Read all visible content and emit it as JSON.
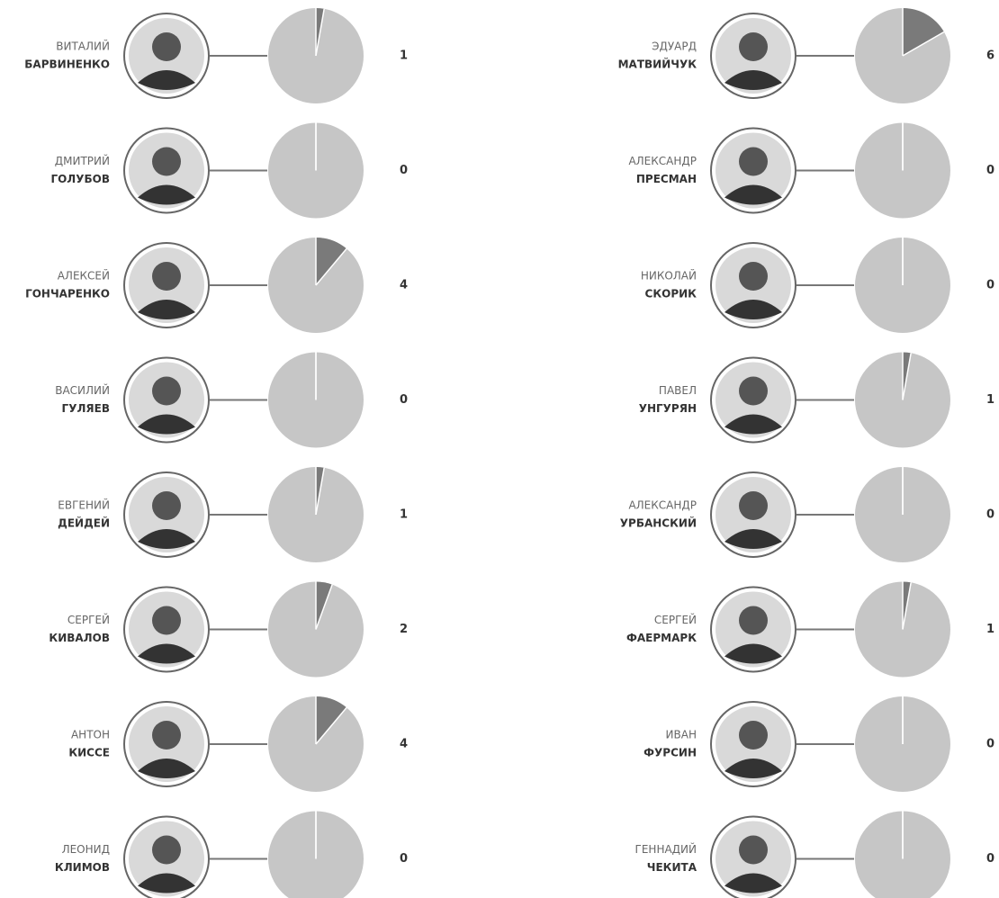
{
  "type": "pie-list",
  "pie_range": [
    0,
    36
  ],
  "people": [
    {
      "first": "ВИТАЛИЙ",
      "last": "БАРВИНЕНКО",
      "value": 1
    },
    {
      "first": "ДМИТРИЙ",
      "last": "ГОЛУБОВ",
      "value": 0
    },
    {
      "first": "АЛЕКСЕЙ",
      "last": "ГОНЧАРЕНКО",
      "value": 4
    },
    {
      "first": "ВАСИЛИЙ",
      "last": "ГУЛЯЕВ",
      "value": 0
    },
    {
      "first": "ЕВГЕНИЙ",
      "last": "ДЕЙДЕЙ",
      "value": 1
    },
    {
      "first": "СЕРГЕЙ",
      "last": "КИВАЛОВ",
      "value": 2
    },
    {
      "first": "АНТОН",
      "last": "КИССЕ",
      "value": 4
    },
    {
      "first": "ЛЕОНИД",
      "last": "КЛИМОВ",
      "value": 0
    },
    {
      "first": "ЭДУАРД",
      "last": "МАТВИЙЧУК",
      "value": 6
    },
    {
      "first": "АЛЕКСАНДР",
      "last": "ПРЕСМАН",
      "value": 0
    },
    {
      "first": "НИКОЛАЙ",
      "last": "СКОРИК",
      "value": 0
    },
    {
      "first": "ПАВЕЛ",
      "last": "УНГУРЯН",
      "value": 1
    },
    {
      "first": "АЛЕКСАНДР",
      "last": "УРБАНСКИЙ",
      "value": 0
    },
    {
      "first": "СЕРГЕЙ",
      "last": "ФАЕРМАРК",
      "value": 1
    },
    {
      "first": "ИВАН",
      "last": "ФУРСИН",
      "value": 0
    },
    {
      "first": "ГЕННАДИЙ",
      "last": "ЧЕКИТА",
      "value": 0
    }
  ]
}
